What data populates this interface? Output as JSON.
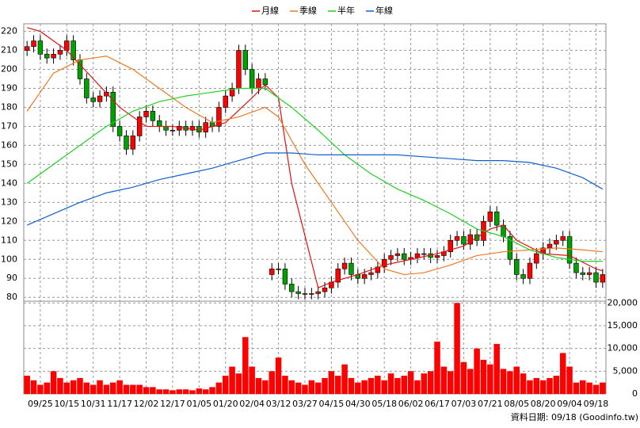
{
  "chart_data": [
    {
      "type": "candlestick",
      "categories": [
        null,
        null,
        "09/25",
        null,
        null,
        null,
        "10/15",
        null,
        null,
        null,
        "10/31",
        null,
        null,
        null,
        "11/17",
        null,
        null,
        null,
        "12/02",
        null,
        null,
        null,
        "12/17",
        null,
        null,
        null,
        "01/05",
        null,
        null,
        null,
        "01/20",
        null,
        null,
        null,
        "02/04",
        null,
        null,
        null,
        "03/12",
        null,
        null,
        null,
        "03/27",
        null,
        null,
        null,
        "04/15",
        null,
        null,
        null,
        "04/30",
        null,
        null,
        null,
        "05/18",
        null,
        null,
        null,
        "06/02",
        null,
        null,
        null,
        "06/17",
        null,
        null,
        null,
        "07/03",
        null,
        null,
        null,
        "07/21",
        null,
        null,
        null,
        "08/05",
        null,
        null,
        null,
        "08/20",
        null,
        null,
        null,
        "09/04",
        null,
        null,
        null,
        "09/18",
        null
      ],
      "open": [
        210,
        212,
        215,
        208,
        206,
        208,
        210,
        215,
        205,
        195,
        185,
        183,
        186,
        188,
        170,
        165,
        158,
        165,
        175,
        178,
        173,
        170,
        168,
        168,
        170,
        168,
        170,
        167,
        172,
        170,
        180,
        186,
        190,
        210,
        200,
        190,
        195,
        92,
        95,
        95,
        87,
        83,
        82,
        82,
        82,
        83,
        85,
        88,
        95,
        98,
        92,
        90,
        92,
        93,
        96,
        100,
        102,
        103,
        100,
        101,
        103,
        103,
        101,
        102,
        104,
        110,
        112,
        108,
        113,
        110,
        120,
        125,
        118,
        112,
        100,
        92,
        90,
        98,
        103,
        106,
        108,
        110,
        112,
        98,
        93,
        92,
        93,
        88
      ],
      "high": [
        215,
        218,
        218,
        211,
        211,
        213,
        218,
        218,
        208,
        198,
        188,
        189,
        191,
        191,
        173,
        168,
        168,
        178,
        181,
        181,
        176,
        173,
        171,
        173,
        173,
        173,
        173,
        175,
        175,
        183,
        189,
        193,
        213,
        213,
        203,
        198,
        198,
        98,
        98,
        98,
        90,
        86,
        85,
        85,
        86,
        88,
        91,
        98,
        101,
        101,
        95,
        95,
        96,
        99,
        103,
        105,
        106,
        106,
        104,
        106,
        106,
        106,
        105,
        107,
        113,
        115,
        115,
        116,
        116,
        123,
        128,
        128,
        121,
        115,
        103,
        95,
        101,
        106,
        109,
        111,
        113,
        115,
        115,
        101,
        96,
        96,
        96,
        95
      ],
      "low": [
        207,
        209,
        205,
        203,
        203,
        205,
        207,
        202,
        192,
        182,
        180,
        180,
        183,
        167,
        162,
        155,
        155,
        162,
        172,
        170,
        167,
        165,
        165,
        165,
        165,
        165,
        164,
        164,
        167,
        167,
        177,
        183,
        187,
        197,
        187,
        187,
        189,
        89,
        92,
        84,
        80,
        79,
        79,
        79,
        79,
        80,
        82,
        85,
        92,
        89,
        87,
        87,
        89,
        90,
        93,
        97,
        99,
        97,
        97,
        98,
        100,
        98,
        98,
        99,
        101,
        107,
        105,
        105,
        107,
        107,
        117,
        115,
        109,
        97,
        89,
        87,
        87,
        95,
        100,
        103,
        105,
        107,
        95,
        90,
        89,
        89,
        85,
        85
      ],
      "close": [
        212,
        215,
        208,
        206,
        208,
        210,
        215,
        205,
        195,
        185,
        183,
        186,
        188,
        170,
        165,
        158,
        165,
        175,
        178,
        173,
        170,
        168,
        168,
        170,
        168,
        170,
        167,
        172,
        170,
        180,
        186,
        190,
        210,
        200,
        190,
        195,
        192,
        95,
        95,
        87,
        83,
        82,
        82,
        82,
        83,
        85,
        88,
        95,
        98,
        92,
        90,
        92,
        93,
        96,
        100,
        102,
        103,
        100,
        101,
        103,
        103,
        101,
        102,
        104,
        110,
        112,
        108,
        113,
        110,
        120,
        125,
        118,
        112,
        100,
        92,
        90,
        98,
        103,
        106,
        108,
        110,
        112,
        98,
        93,
        92,
        93,
        88,
        92
      ],
      "up_color": "#ff0000",
      "down_color": "#00a000",
      "series": [
        {
          "name": "月線",
          "color": "#e01010",
          "x": [
            0,
            2,
            6,
            10,
            14,
            18,
            22,
            26,
            30,
            34,
            36,
            38,
            40,
            44,
            46,
            50,
            54,
            58,
            62,
            66,
            70,
            72,
            74,
            78,
            82,
            86,
            87
          ],
          "values": [
            222,
            220,
            210,
            195,
            180,
            170,
            170,
            168,
            172,
            185,
            192,
            185,
            140,
            85,
            88,
            92,
            97,
            100,
            103,
            107,
            116,
            118,
            110,
            103,
            102,
            95,
            94
          ]
        },
        {
          "name": "季線",
          "color": "#f07820",
          "x": [
            0,
            4,
            8,
            12,
            16,
            20,
            24,
            28,
            32,
            36,
            38,
            42,
            46,
            50,
            54,
            57,
            60,
            64,
            68,
            72,
            76,
            80,
            84,
            87
          ],
          "values": [
            178,
            198,
            205,
            207,
            200,
            190,
            180,
            172,
            175,
            180,
            175,
            150,
            130,
            110,
            95,
            92,
            93,
            97,
            102,
            104,
            105,
            106,
            105,
            104
          ]
        },
        {
          "name": "半年",
          "color": "#20d020",
          "x": [
            0,
            4,
            8,
            12,
            16,
            20,
            24,
            28,
            32,
            36,
            40,
            44,
            48,
            52,
            56,
            60,
            64,
            68,
            72,
            76,
            80,
            84,
            87
          ],
          "values": [
            140,
            150,
            160,
            170,
            178,
            183,
            186,
            188,
            190,
            190,
            180,
            168,
            155,
            145,
            137,
            131,
            124,
            116,
            112,
            105,
            101,
            99,
            99
          ]
        },
        {
          "name": "年線",
          "color": "#1060d0",
          "x": [
            0,
            4,
            8,
            12,
            16,
            20,
            24,
            28,
            32,
            36,
            40,
            44,
            48,
            52,
            56,
            60,
            64,
            68,
            72,
            76,
            80,
            84,
            87
          ],
          "values": [
            118,
            124,
            130,
            135,
            138,
            142,
            145,
            148,
            152,
            156,
            156,
            155,
            155,
            155,
            155,
            154,
            153,
            152,
            152,
            151,
            148,
            143,
            137
          ]
        }
      ],
      "ylim": [
        78,
        224
      ],
      "yticks": [
        80,
        90,
        100,
        110,
        120,
        130,
        140,
        150,
        160,
        170,
        180,
        190,
        200,
        210,
        220
      ],
      "grid": true
    },
    {
      "type": "bar",
      "color": "#ff0000",
      "values": [
        4000,
        3000,
        2000,
        2500,
        5000,
        3500,
        2500,
        3000,
        3500,
        2500,
        2000,
        3000,
        2000,
        2500,
        3000,
        2000,
        2000,
        2000,
        1500,
        1500,
        1000,
        1000,
        800,
        1000,
        1000,
        800,
        1200,
        1000,
        1500,
        2500,
        4000,
        6000,
        4500,
        12500,
        6000,
        3500,
        3000,
        5000,
        8000,
        4000,
        3000,
        2500,
        2000,
        3000,
        2500,
        3500,
        5000,
        4000,
        6500,
        3500,
        2500,
        3000,
        3500,
        4000,
        3000,
        4500,
        3500,
        4000,
        5000,
        3000,
        4500,
        5000,
        11500,
        6000,
        5000,
        20000,
        7000,
        5500,
        10000,
        7500,
        6500,
        11000,
        5500,
        5000,
        6000,
        4500,
        3000,
        3500,
        3000,
        3500,
        4000,
        9000,
        6000,
        2500,
        3000,
        2500,
        2000,
        2500
      ],
      "ylim": [
        0,
        20400
      ],
      "yticks": [
        0,
        {
          "value": 5000,
          "label": "5,000"
        },
        {
          "value": 10000,
          "label": "10,000"
        },
        {
          "value": 15000,
          "label": "15,000"
        },
        {
          "value": 20000,
          "label": "20,000"
        }
      ],
      "grid": true
    }
  ],
  "footer": "資料日期: 09/18  (Goodinfo.tw)"
}
